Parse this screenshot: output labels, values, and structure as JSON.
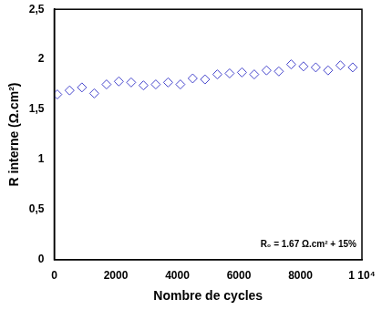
{
  "chart_data": {
    "type": "scatter",
    "x_label": "Nombre de cycles",
    "y_label": "R interne (Ω.cm²)",
    "annotation": "R₀ = 1.67 Ω.cm² + 15%",
    "x": [
      100,
      500,
      900,
      1300,
      1700,
      2100,
      2500,
      2900,
      3300,
      3700,
      4100,
      4500,
      4900,
      5300,
      5700,
      6100,
      6500,
      6900,
      7300,
      7700,
      8100,
      8500,
      8900,
      9300,
      9700
    ],
    "values": [
      1.65,
      1.69,
      1.72,
      1.66,
      1.75,
      1.78,
      1.77,
      1.74,
      1.75,
      1.77,
      1.75,
      1.81,
      1.8,
      1.85,
      1.86,
      1.87,
      1.85,
      1.89,
      1.88,
      1.95,
      1.93,
      1.92,
      1.89,
      1.94,
      1.92
    ],
    "color": "#4444cc",
    "marker": "diamond",
    "grid": false,
    "xlim": [
      0,
      10000
    ],
    "xticks": [
      0,
      2000,
      4000,
      6000,
      8000,
      {
        "value": 10000,
        "label": "1 10⁴"
      }
    ],
    "ylim": [
      0,
      2.5
    ],
    "yticks": [
      0,
      {
        "value": 0.5,
        "label": "0,5"
      },
      1,
      {
        "value": 1.5,
        "label": "1,5"
      },
      2,
      {
        "value": 2.5,
        "label": "2,5"
      }
    ]
  }
}
